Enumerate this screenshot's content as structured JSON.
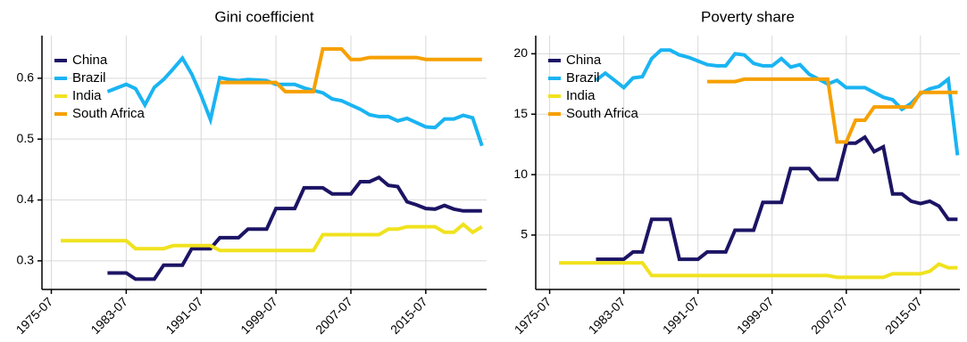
{
  "chart_data": [
    {
      "type": "line",
      "title": "Gini coefficient",
      "x": [
        "1976-07",
        "1977-07",
        "1978-07",
        "1979-07",
        "1980-07",
        "1981-07",
        "1982-07",
        "1983-07",
        "1984-07",
        "1985-07",
        "1986-07",
        "1987-07",
        "1988-07",
        "1989-07",
        "1990-07",
        "1991-07",
        "1992-07",
        "1993-07",
        "1994-07",
        "1995-07",
        "1996-07",
        "1997-07",
        "1998-07",
        "1999-07",
        "2000-07",
        "2001-07",
        "2002-07",
        "2003-07",
        "2004-07",
        "2005-07",
        "2006-07",
        "2007-07",
        "2008-07",
        "2009-07",
        "2010-07",
        "2011-07",
        "2012-07",
        "2013-07",
        "2014-07",
        "2015-07",
        "2016-07",
        "2017-07",
        "2018-07",
        "2019-07",
        "2020-07",
        "2021-07"
      ],
      "xlim": [
        "1974-07",
        "2022-01"
      ],
      "xticks": [
        "1975-07",
        "1983-07",
        "1991-07",
        "1999-07",
        "2007-07",
        "2015-07"
      ],
      "ylim": [
        0.253,
        0.67
      ],
      "yticks": [
        0.3,
        0.4,
        0.5,
        0.6
      ],
      "grid": true,
      "legend": "upper left",
      "series": [
        {
          "name": "China",
          "color": "#1c1464",
          "values": [
            null,
            null,
            null,
            null,
            null,
            0.28,
            0.28,
            0.28,
            0.27,
            0.27,
            0.27,
            0.293,
            0.293,
            0.293,
            0.32,
            0.32,
            0.32,
            0.338,
            0.338,
            0.338,
            0.352,
            0.352,
            0.352,
            0.386,
            0.386,
            0.386,
            0.42,
            0.42,
            0.42,
            0.41,
            0.41,
            0.41,
            0.43,
            0.43,
            0.437,
            0.424,
            0.422,
            0.397,
            0.392,
            0.386,
            0.385,
            0.391,
            0.385,
            0.382,
            0.382,
            0.382
          ]
        },
        {
          "name": "Brazil",
          "color": "#1ab4f2",
          "values": [
            null,
            null,
            null,
            null,
            null,
            0.578,
            0.584,
            0.59,
            0.583,
            0.556,
            0.585,
            0.598,
            0.615,
            0.633,
            0.607,
            0.572,
            0.532,
            0.601,
            0.598,
            0.596,
            0.598,
            0.597,
            0.596,
            0.59,
            0.59,
            0.59,
            0.584,
            0.58,
            0.576,
            0.566,
            0.563,
            0.556,
            0.549,
            0.54,
            0.537,
            0.537,
            0.53,
            0.534,
            0.527,
            0.52,
            0.519,
            0.533,
            0.533,
            0.539,
            0.535,
            0.489
          ]
        },
        {
          "name": "India",
          "color": "#f0e21e",
          "values": [
            0.333,
            0.333,
            0.333,
            0.333,
            0.333,
            0.333,
            0.333,
            0.333,
            0.32,
            0.32,
            0.32,
            0.32,
            0.325,
            0.325,
            0.325,
            0.325,
            0.325,
            0.317,
            0.317,
            0.317,
            0.317,
            0.317,
            0.317,
            0.317,
            0.317,
            0.317,
            0.317,
            0.317,
            0.343,
            0.343,
            0.343,
            0.343,
            0.343,
            0.343,
            0.343,
            0.352,
            0.352,
            0.356,
            0.356,
            0.356,
            0.356,
            0.347,
            0.347,
            0.36,
            0.347,
            0.356
          ]
        },
        {
          "name": "South Africa",
          "color": "#f6a000",
          "values": [
            null,
            null,
            null,
            null,
            null,
            null,
            null,
            null,
            null,
            null,
            null,
            null,
            null,
            null,
            null,
            null,
            null,
            0.593,
            0.593,
            0.593,
            0.593,
            0.593,
            0.593,
            0.593,
            0.578,
            0.578,
            0.578,
            0.578,
            0.648,
            0.648,
            0.648,
            0.631,
            0.631,
            0.634,
            0.634,
            0.634,
            0.634,
            0.634,
            0.634,
            0.631,
            0.631,
            0.631,
            0.631,
            0.631,
            0.631,
            0.631
          ]
        }
      ]
    },
    {
      "type": "line",
      "title": "Poverty share",
      "x": [
        "1976-07",
        "1977-07",
        "1978-07",
        "1979-07",
        "1980-07",
        "1981-07",
        "1982-07",
        "1983-07",
        "1984-07",
        "1985-07",
        "1986-07",
        "1987-07",
        "1988-07",
        "1989-07",
        "1990-07",
        "1991-07",
        "1992-07",
        "1993-07",
        "1994-07",
        "1995-07",
        "1996-07",
        "1997-07",
        "1998-07",
        "1999-07",
        "2000-07",
        "2001-07",
        "2002-07",
        "2003-07",
        "2004-07",
        "2005-07",
        "2006-07",
        "2007-07",
        "2008-07",
        "2009-07",
        "2010-07",
        "2011-07",
        "2012-07",
        "2013-07",
        "2014-07",
        "2015-07",
        "2016-07",
        "2017-07",
        "2018-07",
        "2019-07"
      ],
      "xlim": [
        "1974-01",
        "2019-10"
      ],
      "xticks": [
        "1975-07",
        "1983-07",
        "1991-07",
        "1999-07",
        "2007-07",
        "2015-07"
      ],
      "ylim": [
        0.5,
        21.5
      ],
      "yticks": [
        5,
        10,
        15,
        20
      ],
      "grid": true,
      "legend": "upper left",
      "series": [
        {
          "name": "China",
          "color": "#1c1464",
          "values": [
            null,
            null,
            null,
            null,
            3,
            3,
            3,
            3,
            3.6,
            3.6,
            6.3,
            6.3,
            6.3,
            3,
            3,
            3,
            3.6,
            3.6,
            3.6,
            5.4,
            5.4,
            5.4,
            7.7,
            7.7,
            7.7,
            10.5,
            10.5,
            10.5,
            9.6,
            9.6,
            9.6,
            12.6,
            12.6,
            13.1,
            11.9,
            12.3,
            8.4,
            8.4,
            7.8,
            7.6,
            7.8,
            7.4,
            6.3,
            6.3
          ]
        },
        {
          "name": "Brazil",
          "color": "#1ab4f2",
          "values": [
            null,
            null,
            null,
            null,
            17.8,
            18.4,
            17.8,
            17.2,
            18.0,
            18.1,
            19.6,
            20.3,
            20.3,
            19.9,
            19.7,
            19.4,
            19.1,
            19.0,
            19.0,
            20.0,
            19.9,
            19.2,
            19.0,
            19.0,
            19.6,
            18.9,
            19.1,
            18.3,
            17.9,
            17.5,
            17.8,
            17.2,
            17.2,
            17.2,
            16.8,
            16.4,
            16.2,
            15.4,
            15.9,
            16.7,
            17.1,
            17.3,
            17.9,
            11.6
          ]
        },
        {
          "name": "India",
          "color": "#f0e21e",
          "values": [
            2.7,
            2.7,
            2.7,
            2.7,
            2.7,
            2.7,
            2.7,
            2.7,
            2.7,
            2.7,
            1.65,
            1.65,
            1.65,
            1.65,
            1.65,
            1.65,
            1.65,
            1.65,
            1.65,
            1.65,
            1.65,
            1.65,
            1.65,
            1.65,
            1.65,
            1.65,
            1.65,
            1.65,
            1.65,
            1.65,
            1.5,
            1.5,
            1.5,
            1.5,
            1.5,
            1.5,
            1.8,
            1.8,
            1.8,
            1.8,
            2.0,
            2.6,
            2.3,
            2.3
          ]
        },
        {
          "name": "South Africa",
          "color": "#f6a000",
          "values": [
            null,
            null,
            null,
            null,
            null,
            null,
            null,
            null,
            null,
            null,
            null,
            null,
            null,
            null,
            null,
            null,
            17.7,
            17.7,
            17.7,
            17.7,
            17.9,
            17.9,
            17.9,
            17.9,
            17.9,
            17.9,
            17.9,
            17.9,
            17.9,
            17.9,
            12.7,
            12.7,
            14.5,
            14.5,
            15.6,
            15.6,
            15.6,
            15.6,
            15.6,
            16.8,
            16.8,
            16.8,
            16.8,
            16.8
          ]
        }
      ]
    }
  ]
}
